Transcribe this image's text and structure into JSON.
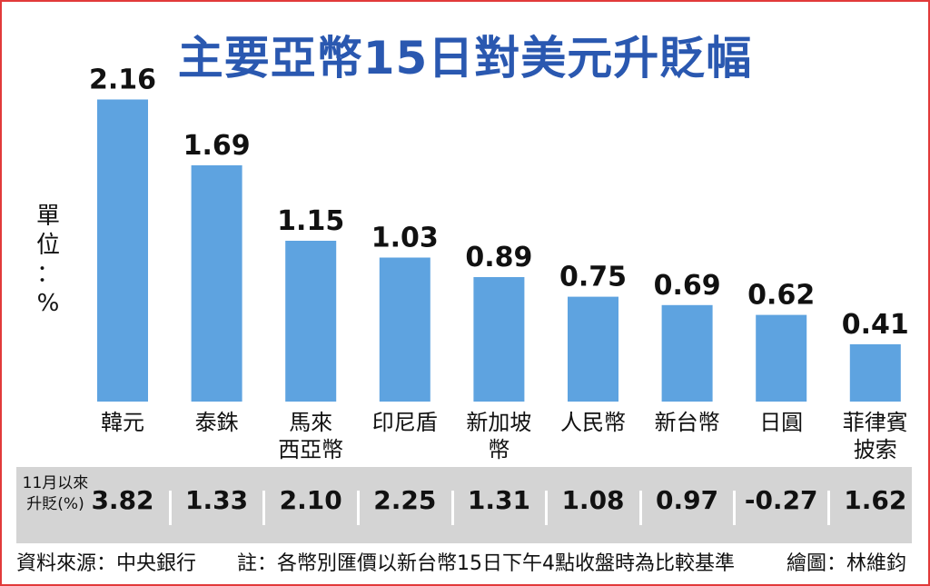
{
  "title": "主要亞幣15日對美元升貶幅",
  "chart_data": {
    "type": "bar",
    "title": "主要亞幣15日對美元升貶幅",
    "ylabel": "單位：%",
    "ylabel_chars": [
      "單",
      "位",
      "：",
      "%"
    ],
    "ylim": [
      0,
      2.3
    ],
    "categories": [
      "韓元",
      "泰銖",
      "馬來西亞幣",
      "印尼盾",
      "新加坡幣",
      "人民幣",
      "新台幣",
      "日圓",
      "菲律賓披索"
    ],
    "category_lines": [
      [
        "韓元"
      ],
      [
        "泰銖"
      ],
      [
        "馬來",
        "西亞幣"
      ],
      [
        "印尼盾"
      ],
      [
        "新加坡",
        "幣"
      ],
      [
        "人民幣"
      ],
      [
        "新台幣"
      ],
      [
        "日圓"
      ],
      [
        "菲律賓",
        "披索"
      ]
    ],
    "values": [
      2.16,
      1.69,
      1.15,
      1.03,
      0.89,
      0.75,
      0.69,
      0.62,
      0.41
    ],
    "value_labels": [
      "2.16",
      "1.69",
      "1.15",
      "1.03",
      "0.89",
      "0.75",
      "0.69",
      "0.62",
      "0.41"
    ],
    "bar_color": "#5ea3e0",
    "grid": false,
    "legend": "none"
  },
  "band": {
    "header_line1": "11月以來",
    "header_line2": "升貶(%)",
    "values": [
      "3.82",
      "1.33",
      "2.10",
      "2.25",
      "1.31",
      "1.08",
      "0.97",
      "-0.27",
      "1.62"
    ]
  },
  "footer": {
    "source": "資料來源：中央銀行",
    "note": "註：各幣別匯價以新台幣15日下午4點收盤時為比較基準",
    "credit": "繪圖：林維鈞"
  },
  "colors": {
    "title": "#2a58b0",
    "bar": "#5ea3e0",
    "band": "#d4d4d4",
    "frame": "#e23a3a"
  }
}
